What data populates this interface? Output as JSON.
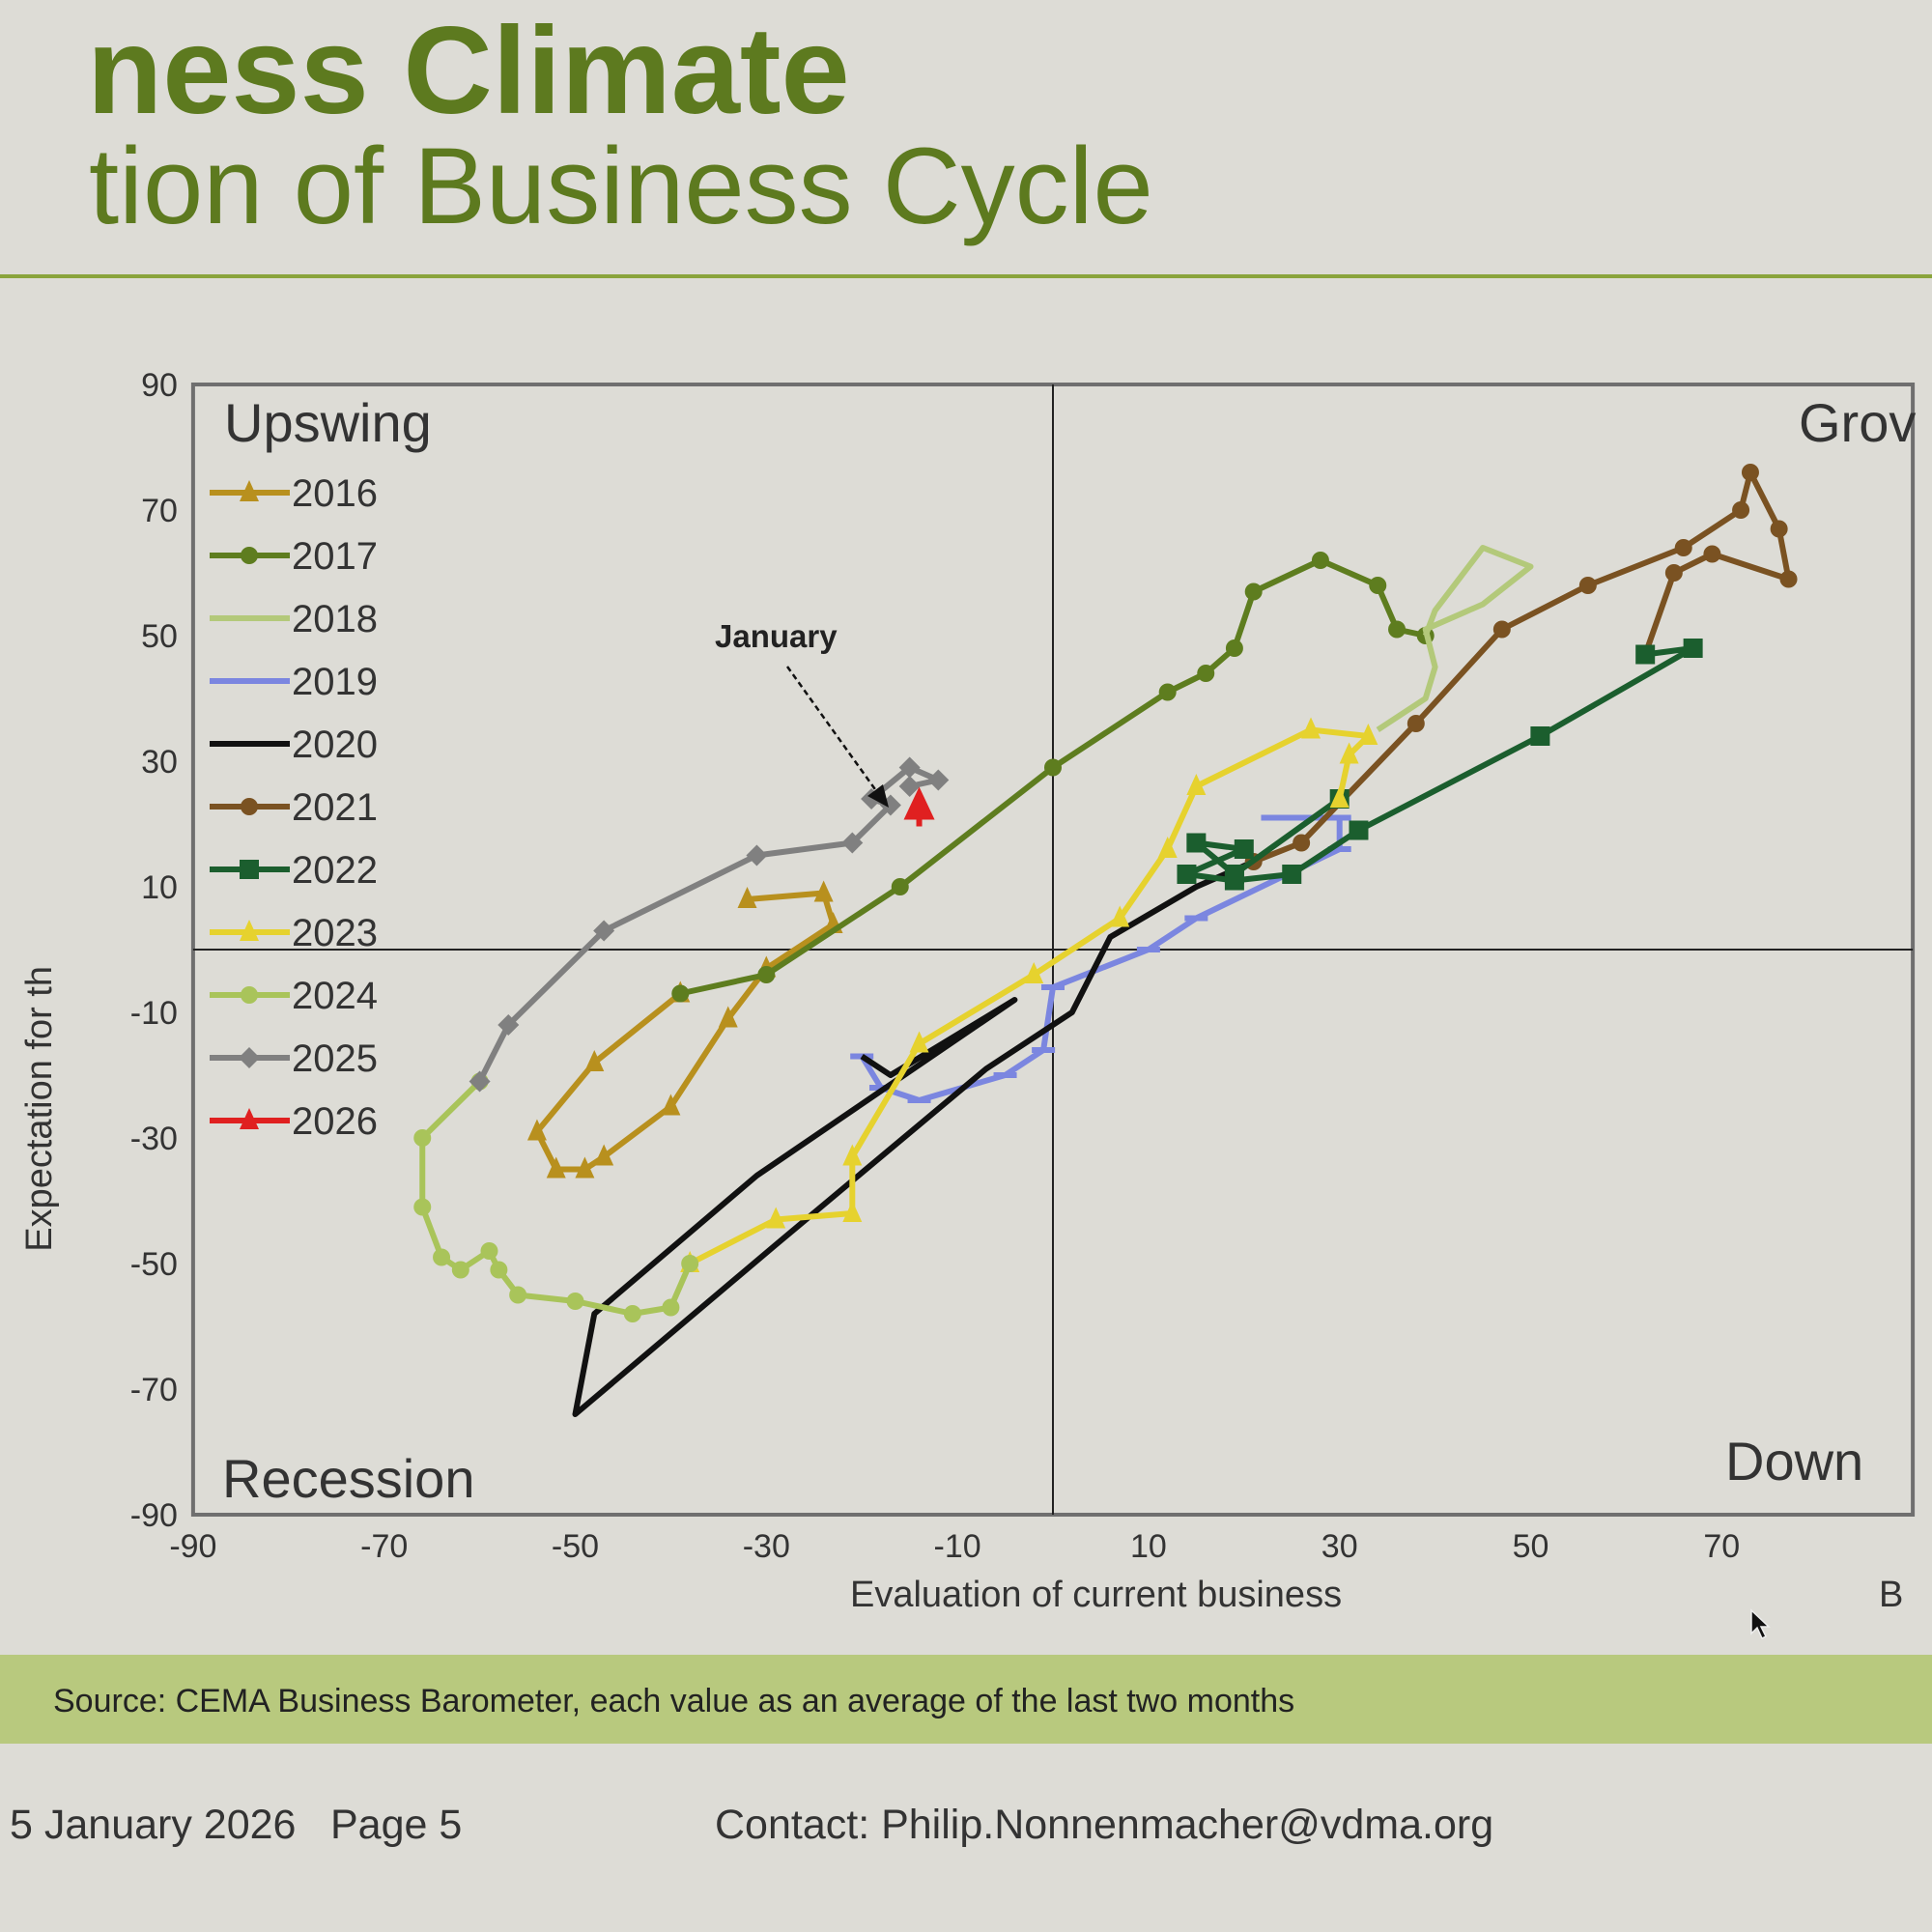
{
  "header": {
    "title": "ness Climate",
    "subtitle": "tion of Business Cycle"
  },
  "quadrants": {
    "upswing": "Upswing",
    "growth": "Grov",
    "downswing": "Down",
    "recession": "Recession"
  },
  "annotation": "January",
  "footer": {
    "source": "Source: CEMA Business Barometer, each value as an average of the last two months",
    "date": "5 January 2026",
    "page": "Page 5",
    "contact": "Contact: Philip.Nonnenmacher@vdma.org"
  },
  "chart_data": {
    "type": "line",
    "xlabel": "Evaluation  of current business",
    "xlabel_extra": "B",
    "ylabel": "Expectation for th",
    "xlim": [
      -90,
      90
    ],
    "ylim": [
      -90,
      90
    ],
    "xticks": [
      -90,
      -70,
      -50,
      -30,
      -10,
      10,
      30,
      50,
      70
    ],
    "yticks": [
      90,
      70,
      50,
      30,
      10,
      -10,
      -30,
      -50,
      -70,
      -90
    ],
    "grid": false,
    "reference_lines": {
      "x": 0,
      "y": 0
    },
    "legend_placement": "top-left",
    "series": [
      {
        "name": "2016",
        "color": "#b8901e",
        "marker": "triangle",
        "points": [
          [
            -32,
            8
          ],
          [
            -24,
            9
          ],
          [
            -23,
            4
          ],
          [
            -30,
            -3
          ],
          [
            -34,
            -11
          ],
          [
            -40,
            -25
          ],
          [
            -47,
            -33
          ],
          [
            -49,
            -35
          ],
          [
            -52,
            -35
          ],
          [
            -54,
            -29
          ],
          [
            -48,
            -18
          ],
          [
            -39,
            -7
          ]
        ]
      },
      {
        "name": "2017",
        "color": "#5e7d1f",
        "marker": "circle",
        "points": [
          [
            -39,
            -7
          ],
          [
            -30,
            -4
          ],
          [
            -16,
            10
          ],
          [
            0,
            29
          ],
          [
            12,
            41
          ],
          [
            16,
            44
          ],
          [
            19,
            48
          ],
          [
            21,
            57
          ],
          [
            28,
            62
          ],
          [
            34,
            58
          ],
          [
            36,
            51
          ],
          [
            39,
            50
          ]
        ]
      },
      {
        "name": "2018",
        "color": "#b3c97a",
        "marker": "none",
        "points": [
          [
            39,
            50
          ],
          [
            40,
            54
          ],
          [
            45,
            64
          ],
          [
            50,
            61
          ],
          [
            45,
            55
          ],
          [
            39,
            51
          ],
          [
            40,
            45
          ],
          [
            39,
            40
          ],
          [
            34,
            35
          ]
        ]
      },
      {
        "name": "2019",
        "color": "#7b86e0",
        "marker": "dash",
        "points": [
          [
            23,
            21
          ],
          [
            30,
            21
          ],
          [
            30,
            16
          ],
          [
            15,
            5
          ],
          [
            10,
            0
          ],
          [
            0,
            -6
          ],
          [
            -1,
            -16
          ],
          [
            -5,
            -20
          ],
          [
            -14,
            -24
          ],
          [
            -18,
            -22
          ],
          [
            -20,
            -17
          ]
        ]
      },
      {
        "name": "2020",
        "color": "#111111",
        "marker": "none",
        "points": [
          [
            -20,
            -17
          ],
          [
            -17,
            -20
          ],
          [
            -4,
            -8
          ],
          [
            -31,
            -36
          ],
          [
            -48,
            -58
          ],
          [
            -50,
            -74
          ],
          [
            -29,
            -47
          ],
          [
            -7,
            -19
          ],
          [
            2,
            -10
          ],
          [
            6,
            2
          ],
          [
            15,
            10
          ],
          [
            21,
            14
          ]
        ]
      },
      {
        "name": "2021",
        "color": "#7a5222",
        "marker": "circle",
        "points": [
          [
            21,
            14
          ],
          [
            26,
            17
          ],
          [
            38,
            36
          ],
          [
            47,
            51
          ],
          [
            56,
            58
          ],
          [
            66,
            64
          ],
          [
            72,
            70
          ],
          [
            73,
            76
          ],
          [
            76,
            67
          ],
          [
            77,
            59
          ],
          [
            69,
            63
          ],
          [
            65,
            60
          ],
          [
            62,
            47
          ]
        ]
      },
      {
        "name": "2022",
        "color": "#1b5e2e",
        "marker": "square",
        "points": [
          [
            62,
            47
          ],
          [
            67,
            48
          ],
          [
            51,
            34
          ],
          [
            32,
            19
          ],
          [
            25,
            12
          ],
          [
            19,
            11
          ],
          [
            14,
            12
          ],
          [
            20,
            16
          ],
          [
            15,
            17
          ],
          [
            19,
            12
          ],
          [
            30,
            24
          ]
        ]
      },
      {
        "name": "2023",
        "color": "#e6d22e",
        "marker": "triangle",
        "points": [
          [
            30,
            24
          ],
          [
            31,
            31
          ],
          [
            33,
            34
          ],
          [
            27,
            35
          ],
          [
            15,
            26
          ],
          [
            12,
            16
          ],
          [
            7,
            5
          ],
          [
            -2,
            -4
          ],
          [
            -14,
            -15
          ],
          [
            -21,
            -33
          ],
          [
            -21,
            -42
          ],
          [
            -29,
            -43
          ],
          [
            -38,
            -50
          ]
        ]
      },
      {
        "name": "2024",
        "color": "#a9c45a",
        "marker": "circle",
        "points": [
          [
            -38,
            -50
          ],
          [
            -40,
            -57
          ],
          [
            -44,
            -58
          ],
          [
            -50,
            -56
          ],
          [
            -56,
            -55
          ],
          [
            -58,
            -51
          ],
          [
            -59,
            -48
          ],
          [
            -62,
            -51
          ],
          [
            -64,
            -49
          ],
          [
            -66,
            -41
          ],
          [
            -66,
            -30
          ],
          [
            -60,
            -21
          ]
        ]
      },
      {
        "name": "2025",
        "color": "#808080",
        "marker": "diamond",
        "points": [
          [
            -60,
            -21
          ],
          [
            -57,
            -12
          ],
          [
            -47,
            3
          ],
          [
            -31,
            15
          ],
          [
            -21,
            17
          ],
          [
            -17,
            23
          ],
          [
            -19,
            24
          ],
          [
            -15,
            29
          ],
          [
            -12,
            27
          ],
          [
            -15,
            26
          ]
        ]
      },
      {
        "name": "2026",
        "color": "#e02020",
        "marker": "triangle",
        "points": [
          [
            -14,
            23
          ]
        ]
      }
    ]
  }
}
